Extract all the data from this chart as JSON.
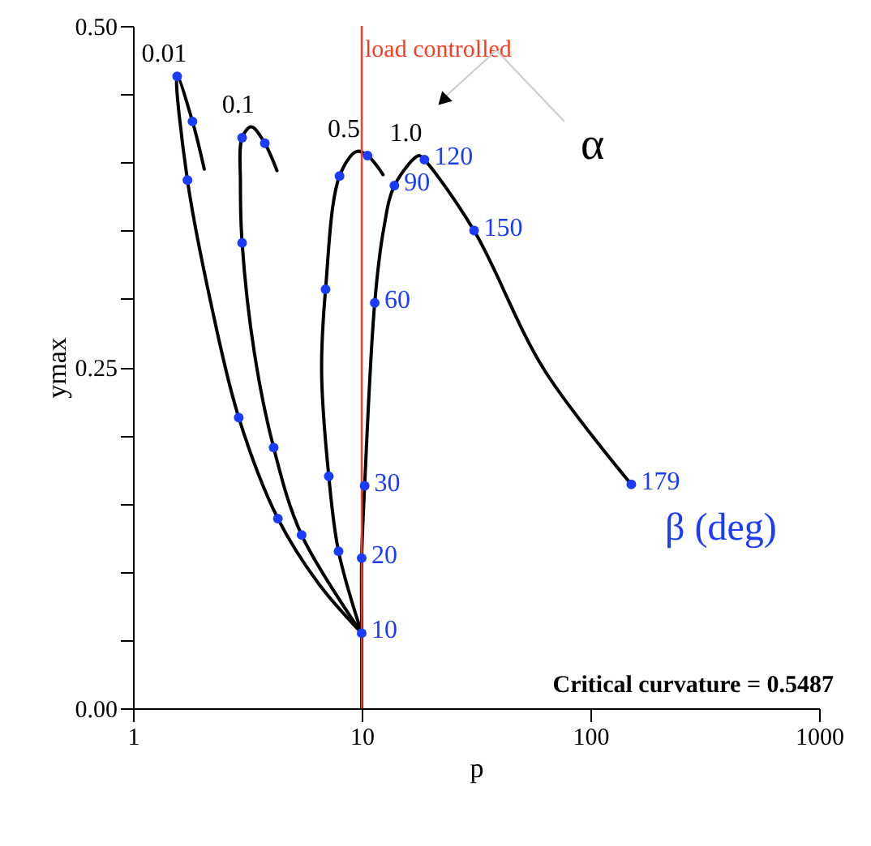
{
  "chart_data": {
    "type": "line",
    "xlabel": "p",
    "ylabel": "ymax",
    "log": "x",
    "xlim": [
      1,
      1000
    ],
    "xticks": [
      1,
      10,
      100,
      1000
    ],
    "ylim": [
      0,
      0.5
    ],
    "yticks": [
      {
        "value": 0,
        "label": "0.00"
      },
      {
        "value": 0.05,
        "label": null
      },
      {
        "value": 0.1,
        "label": null
      },
      {
        "value": 0.15,
        "label": null
      },
      {
        "value": 0.2,
        "label": null
      },
      {
        "value": 0.25,
        "label": "0.25"
      },
      {
        "value": 0.3,
        "label": null
      },
      {
        "value": 0.35,
        "label": null
      },
      {
        "value": 0.4,
        "label": null
      },
      {
        "value": 0.45,
        "label": null
      },
      {
        "value": 0.5,
        "label": "0.50"
      }
    ],
    "grid": false,
    "line_style": "solid",
    "series": [
      {
        "name": "0.01",
        "color": "#000000",
        "x": [
          10,
          6.5,
          4.3,
          2.9,
          2.19,
          1.73,
          1.56,
          1.82,
          2.05
        ],
        "values": [
          0.055,
          0.091,
          0.139,
          0.213,
          0.297,
          0.387,
          0.463,
          0.43,
          0.395
        ]
      },
      {
        "name": "0.1",
        "color": "#000000",
        "x": [
          10,
          5.46,
          4.12,
          3.39,
          3.0,
          2.95,
          3.0,
          3.29,
          3.77,
          4.26
        ],
        "values": [
          0.055,
          0.127,
          0.191,
          0.261,
          0.341,
          0.384,
          0.418,
          0.426,
          0.414,
          0.394
        ]
      },
      {
        "name": "0.5",
        "color": "#000000",
        "x": [
          10,
          7.92,
          7.18,
          6.68,
          6.95,
          8.0,
          9.52,
          10.6,
          12.4
        ],
        "values": [
          0.055,
          0.115,
          0.17,
          0.246,
          0.307,
          0.39,
          0.408,
          0.405,
          0.391
        ]
      },
      {
        "name": "1.0",
        "color": "#000000",
        "x": [
          10,
          10,
          10,
          10.3,
          11.4,
          12.5,
          13.9,
          17.8,
          18.8,
          31.0,
          62.3,
          151
        ],
        "values": [
          0,
          0.055,
          0.11,
          0.163,
          0.297,
          0.352,
          0.383,
          0.405,
          0.402,
          0.35,
          0.249,
          0.164
        ]
      },
      {
        "type": "scatter",
        "marker": "circle",
        "color": "#1a3cff",
        "x": [
          4.3,
          2.9,
          1.73,
          1.56,
          1.82,
          5.46,
          4.12,
          3.0,
          3.0,
          3.77,
          7.92,
          7.18,
          6.95,
          8.0,
          10.6,
          10,
          10,
          10.3,
          11.4,
          13.9,
          18.8,
          31.0,
          151
        ],
        "values": [
          0.139,
          0.213,
          0.387,
          0.463,
          0.43,
          0.127,
          0.191,
          0.341,
          0.418,
          0.414,
          0.115,
          0.17,
          0.307,
          0.39,
          0.405,
          0.055,
          0.11,
          0.163,
          0.297,
          0.383,
          0.402,
          0.35,
          0.164
        ]
      }
    ],
    "ref_lines": [
      {
        "axis": "x",
        "value": 10,
        "label": "load controlled",
        "color": "#ff3b1f",
        "line_style": "solid"
      }
    ],
    "annotations": [
      {
        "text": "10",
        "x": 10,
        "y": 0.055
      },
      {
        "text": "20",
        "x": 10,
        "y": 0.11
      },
      {
        "text": "30",
        "x": 10.3,
        "y": 0.163
      },
      {
        "text": "60",
        "x": 11.4,
        "y": 0.297
      },
      {
        "text": "90",
        "x": 13.9,
        "y": 0.383
      },
      {
        "text": "120",
        "x": 18.8,
        "y": 0.402
      },
      {
        "text": "150",
        "x": 31.0,
        "y": 0.35
      },
      {
        "text": "179",
        "x": 151,
        "y": 0.164
      },
      "α",
      "β (deg)",
      "Critical curvature = 0.5487"
    ]
  }
}
